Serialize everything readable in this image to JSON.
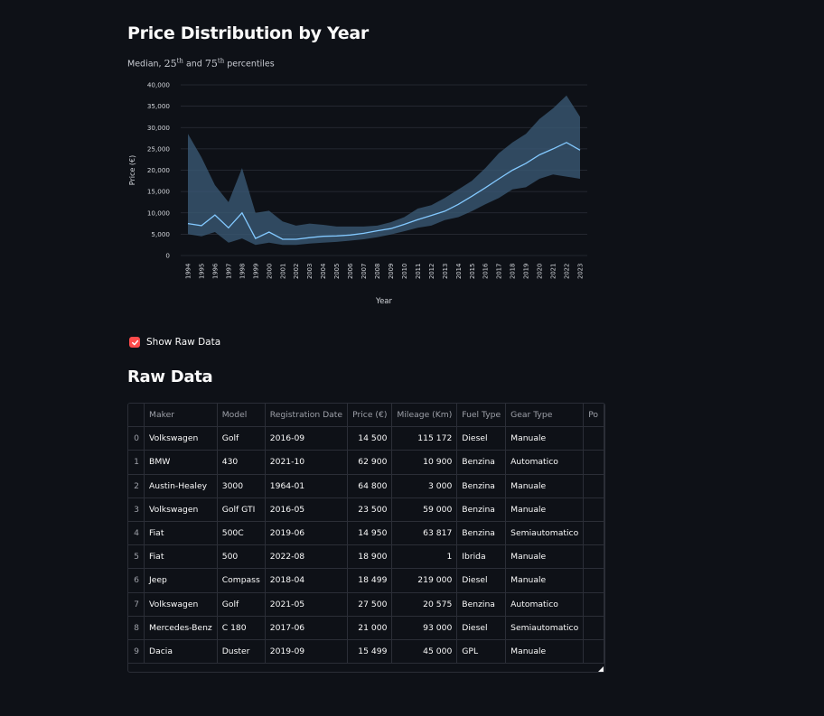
{
  "header": {
    "title": "Price Distribution by Year",
    "subtitle_prefix": "Median,",
    "p25": "25",
    "p75": "75",
    "th": "th",
    "and": "and",
    "subtitle_suffix": "percentiles"
  },
  "chart_data": {
    "type": "area",
    "title": "Price Distribution by Year",
    "xlabel": "Year",
    "ylabel": "Price (€)",
    "ylim": [
      0,
      40000
    ],
    "yticks": [
      0,
      5000,
      10000,
      15000,
      20000,
      25000,
      30000,
      35000,
      40000
    ],
    "ytick_labels": [
      "0",
      "5,000",
      "10,000",
      "15,000",
      "20,000",
      "25,000",
      "30,000",
      "35,000",
      "40,000"
    ],
    "x": [
      "1994",
      "1995",
      "1996",
      "1997",
      "1998",
      "1999",
      "2000",
      "2001",
      "2002",
      "2003",
      "2004",
      "2005",
      "2006",
      "2007",
      "2008",
      "2009",
      "2010",
      "2011",
      "2012",
      "2013",
      "2014",
      "2015",
      "2016",
      "2017",
      "2018",
      "2019",
      "2020",
      "2021",
      "2022",
      "2023"
    ],
    "series": [
      {
        "role": "p75",
        "values": [
          28500,
          23000,
          16500,
          12500,
          20500,
          10000,
          10500,
          8000,
          7000,
          7500,
          7200,
          6800,
          6800,
          6800,
          7000,
          7800,
          9000,
          11000,
          11800,
          13500,
          15500,
          17500,
          20500,
          24000,
          26500,
          28500,
          32000,
          34500,
          37500,
          32500
        ]
      },
      {
        "role": "median",
        "values": [
          7500,
          7000,
          9500,
          6500,
          10000,
          4000,
          5500,
          3800,
          3800,
          4200,
          4500,
          4600,
          4800,
          5200,
          5800,
          6300,
          7300,
          8400,
          9400,
          10400,
          12000,
          13900,
          15900,
          18000,
          20000,
          21600,
          23600,
          25000,
          26500,
          24700
        ]
      },
      {
        "role": "p25",
        "values": [
          5000,
          4500,
          5500,
          3000,
          4000,
          2500,
          3000,
          2500,
          2500,
          2800,
          3000,
          3200,
          3500,
          3800,
          4300,
          4900,
          5700,
          6500,
          7000,
          8300,
          9000,
          10400,
          12000,
          13500,
          15500,
          16000,
          18000,
          19000,
          18500,
          18000
        ]
      }
    ],
    "grid": true,
    "colors": {
      "line": "#83c9ff",
      "band": "#3a5a75"
    }
  },
  "controls": {
    "show_raw_label": "Show Raw Data",
    "show_raw_checked": true
  },
  "raw_data": {
    "title": "Raw Data",
    "columns": [
      "Maker",
      "Model",
      "Registration Date",
      "Price (€)",
      "Mileage (Km)",
      "Fuel Type",
      "Gear Type",
      "Po"
    ],
    "rows": [
      {
        "idx": "0",
        "maker": "Volkswagen",
        "model": "Golf",
        "reg": "2016-09",
        "price": "14 500",
        "mileage": "115 172",
        "fuel": "Diesel",
        "gear": "Manuale"
      },
      {
        "idx": "1",
        "maker": "BMW",
        "model": "430",
        "reg": "2021-10",
        "price": "62 900",
        "mileage": "10 900",
        "fuel": "Benzina",
        "gear": "Automatico"
      },
      {
        "idx": "2",
        "maker": "Austin-Healey",
        "model": "3000",
        "reg": "1964-01",
        "price": "64 800",
        "mileage": "3 000",
        "fuel": "Benzina",
        "gear": "Manuale"
      },
      {
        "idx": "3",
        "maker": "Volkswagen",
        "model": "Golf GTI",
        "reg": "2016-05",
        "price": "23 500",
        "mileage": "59 000",
        "fuel": "Benzina",
        "gear": "Manuale"
      },
      {
        "idx": "4",
        "maker": "Fiat",
        "model": "500C",
        "reg": "2019-06",
        "price": "14 950",
        "mileage": "63 817",
        "fuel": "Benzina",
        "gear": "Semiautomatico"
      },
      {
        "idx": "5",
        "maker": "Fiat",
        "model": "500",
        "reg": "2022-08",
        "price": "18 900",
        "mileage": "1",
        "fuel": "Ibrida",
        "gear": "Manuale"
      },
      {
        "idx": "6",
        "maker": "Jeep",
        "model": "Compass",
        "reg": "2018-04",
        "price": "18 499",
        "mileage": "219 000",
        "fuel": "Diesel",
        "gear": "Manuale"
      },
      {
        "idx": "7",
        "maker": "Volkswagen",
        "model": "Golf",
        "reg": "2021-05",
        "price": "27 500",
        "mileage": "20 575",
        "fuel": "Benzina",
        "gear": "Automatico"
      },
      {
        "idx": "8",
        "maker": "Mercedes-Benz",
        "model": "C 180",
        "reg": "2017-06",
        "price": "21 000",
        "mileage": "93 000",
        "fuel": "Diesel",
        "gear": "Semiautomatico"
      },
      {
        "idx": "9",
        "maker": "Dacia",
        "model": "Duster",
        "reg": "2019-09",
        "price": "15 499",
        "mileage": "45 000",
        "fuel": "GPL",
        "gear": "Manuale"
      }
    ]
  }
}
